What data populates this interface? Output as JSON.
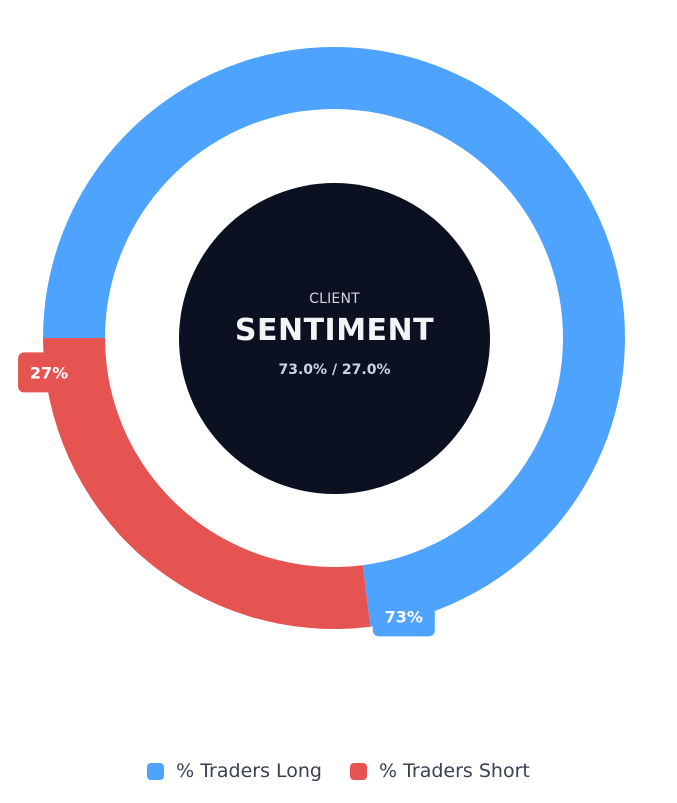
{
  "chart_data": {
    "type": "pie",
    "categories": [
      "% Traders Long",
      "% Traders Short"
    ],
    "values": [
      73.0,
      27.0
    ],
    "data_labels": [
      "73%",
      "27%"
    ],
    "colors": [
      "#4da3fd",
      "#e65451"
    ],
    "legend_position": "bottom",
    "donut": true
  },
  "center": {
    "label": "CLIENT",
    "title": "SENTIMENT",
    "ratio": "73.0% / 27.0%",
    "background_color": "#0b1121"
  },
  "legend": {
    "items": [
      {
        "label": "% Traders Long",
        "color": "#4da3fd"
      },
      {
        "label": "% Traders Short",
        "color": "#e65451"
      }
    ]
  }
}
